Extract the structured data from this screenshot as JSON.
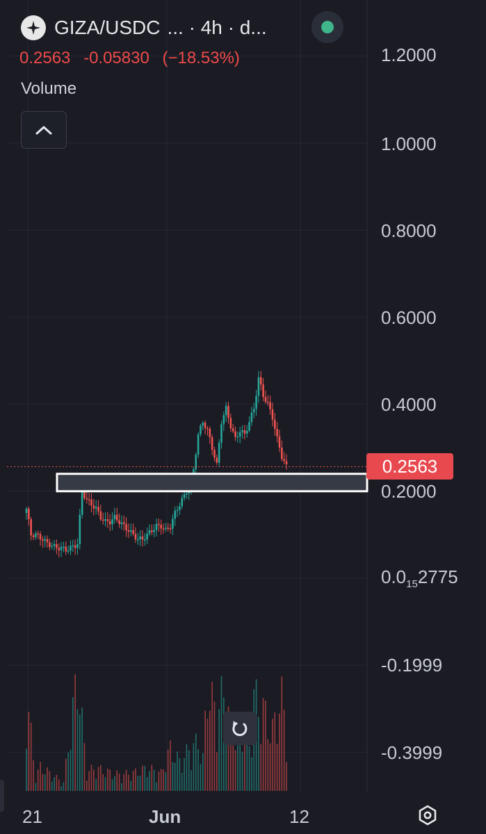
{
  "header": {
    "symbol": "GIZA/USDC",
    "interval_text": "... · 4h · d...",
    "logo_icon": "star-logo-icon",
    "status_color": "#3fb68b",
    "last_price": "0.2563",
    "change": "-0.05830",
    "change_pct": "(−18.53%)",
    "volume_label": "Volume"
  },
  "colors": {
    "background": "#1a1b23",
    "up": "#26a69a",
    "down": "#ef5350",
    "price_tag": "#e8494f",
    "zone_fill": "#363a45",
    "zone_border": "#ffffff"
  },
  "price_axis": {
    "labels": [
      "1.2000",
      "1.0000",
      "0.8000",
      "0.6000",
      "0.4000",
      "0.2000",
      "0.0",
      "-0.1999",
      "-0.3999"
    ],
    "small_label": {
      "prefix": "0.0",
      "subscript": "15",
      "suffix": "2775"
    },
    "current_price_tag": "0.2563"
  },
  "time_axis": {
    "labels": [
      {
        "text": "21",
        "bold": false
      },
      {
        "text": "Jun",
        "bold": true
      },
      {
        "text": "12",
        "bold": false
      }
    ]
  },
  "controls": {
    "collapse_icon": "chevron-up-icon",
    "reset_icon": "reset-rotate-icon",
    "settings_icon": "settings-hexagon-icon"
  },
  "chart_data": {
    "type": "candlestick",
    "title": "GIZA/USDC",
    "interval": "4h",
    "last_price": 0.2563,
    "highlight_zone": {
      "low": 0.2,
      "high": 0.24
    },
    "x_labels": [
      "21",
      "Jun",
      "12"
    ],
    "y_ticks": [
      1.2,
      1.0,
      0.8,
      0.6,
      0.4,
      0.2,
      0.0,
      -0.1999,
      -0.3999
    ],
    "grid": true,
    "close_path": [
      [
        0,
        0.16
      ],
      [
        2,
        0.1
      ],
      [
        4,
        0.1
      ],
      [
        7,
        0.09
      ],
      [
        9,
        0.08
      ],
      [
        11,
        0.075
      ],
      [
        13,
        0.07
      ],
      [
        15,
        0.07
      ],
      [
        17,
        0.065
      ],
      [
        19,
        0.07
      ],
      [
        21,
        0.075
      ],
      [
        22,
        0.08
      ],
      [
        24,
        0.2
      ],
      [
        26,
        0.18
      ],
      [
        28,
        0.17
      ],
      [
        30,
        0.16
      ],
      [
        32,
        0.14
      ],
      [
        34,
        0.13
      ],
      [
        36,
        0.13
      ],
      [
        38,
        0.14
      ],
      [
        40,
        0.13
      ],
      [
        42,
        0.12
      ],
      [
        44,
        0.11
      ],
      [
        46,
        0.1
      ],
      [
        48,
        0.09
      ],
      [
        50,
        0.09
      ],
      [
        52,
        0.1
      ],
      [
        54,
        0.11
      ],
      [
        56,
        0.12
      ],
      [
        58,
        0.12
      ],
      [
        60,
        0.11
      ],
      [
        62,
        0.12
      ],
      [
        64,
        0.15
      ],
      [
        66,
        0.17
      ],
      [
        68,
        0.19
      ],
      [
        70,
        0.21
      ],
      [
        72,
        0.25
      ],
      [
        74,
        0.33
      ],
      [
        76,
        0.36
      ],
      [
        78,
        0.34
      ],
      [
        80,
        0.3
      ],
      [
        82,
        0.26
      ],
      [
        84,
        0.36
      ],
      [
        86,
        0.39
      ],
      [
        88,
        0.35
      ],
      [
        90,
        0.32
      ],
      [
        92,
        0.34
      ],
      [
        94,
        0.33
      ],
      [
        96,
        0.36
      ],
      [
        98,
        0.39
      ],
      [
        100,
        0.46
      ],
      [
        102,
        0.42
      ],
      [
        104,
        0.4
      ],
      [
        106,
        0.37
      ],
      [
        108,
        0.32
      ],
      [
        110,
        0.28
      ],
      [
        112,
        0.2563
      ]
    ],
    "volume_peaks": [
      [
        0,
        0.6
      ],
      [
        4,
        0.08
      ],
      [
        6,
        0.15
      ],
      [
        16,
        0.05
      ],
      [
        22,
        0.72
      ],
      [
        26,
        0.12
      ],
      [
        30,
        0.14
      ],
      [
        34,
        0.12
      ],
      [
        40,
        0.1
      ],
      [
        46,
        0.11
      ],
      [
        52,
        0.14
      ],
      [
        58,
        0.11
      ],
      [
        62,
        0.26
      ],
      [
        66,
        0.18
      ],
      [
        70,
        0.25
      ],
      [
        74,
        0.3
      ],
      [
        76,
        0.2
      ],
      [
        78,
        0.64
      ],
      [
        82,
        0.46
      ],
      [
        84,
        0.57
      ],
      [
        86,
        0.62
      ],
      [
        88,
        0.33
      ],
      [
        92,
        0.38
      ],
      [
        94,
        0.36
      ],
      [
        96,
        0.26
      ],
      [
        98,
        0.62
      ],
      [
        100,
        0.49
      ],
      [
        102,
        0.51
      ],
      [
        104,
        0.41
      ],
      [
        106,
        0.37
      ],
      [
        108,
        0.48
      ],
      [
        110,
        0.57
      ],
      [
        112,
        0.4
      ]
    ]
  }
}
